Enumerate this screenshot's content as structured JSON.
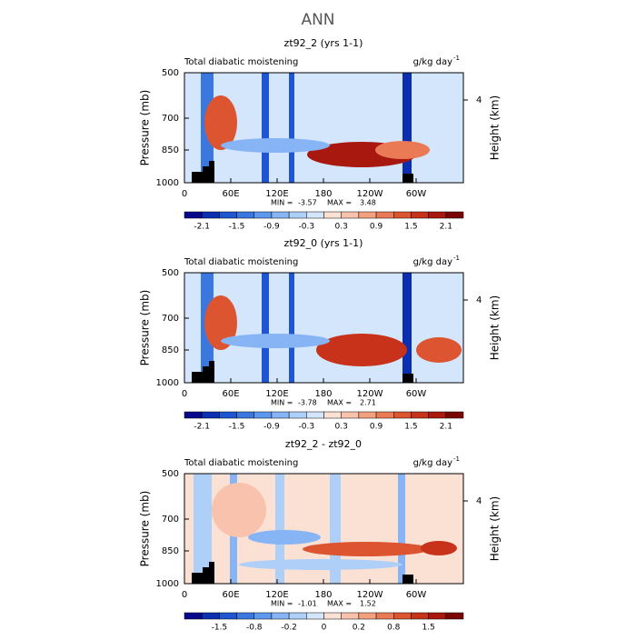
{
  "title": "ANN",
  "colorbar_colors": [
    "#08088a",
    "#0b2fb0",
    "#1f55d0",
    "#3a78e0",
    "#5d97ee",
    "#86b4f5",
    "#aecff8",
    "#d4e6fb",
    "#fbe0d4",
    "#f8c2ac",
    "#f3a07f",
    "#ea7a55",
    "#dc5430",
    "#c8321a",
    "#a8180f",
    "#7a0505"
  ],
  "panels": [
    {
      "title": "zt92_2 (yrs 1-1)",
      "left_label": "Total diabatic moistening",
      "units": "g/kg day",
      "units_exp": "-1",
      "y_label": "Pressure (mb)",
      "y2_label": "Height (km)",
      "yticks": [
        "500",
        "700",
        "850",
        "1000"
      ],
      "y2ticks": [
        "4"
      ],
      "xticks": [
        "0",
        "60E",
        "120E",
        "180",
        "120W",
        "60W"
      ],
      "min_label": "MIN =",
      "min": "-3.57",
      "max_label": "MAX =",
      "max": "3.48",
      "colorbar_labels": [
        "-2.1",
        "-1.5",
        "-0.9",
        "-0.3",
        "0.3",
        "0.9",
        "1.5",
        "2.1"
      ]
    },
    {
      "title": "zt92_0 (yrs 1-1)",
      "left_label": "Total diabatic moistening",
      "units": "g/kg day",
      "units_exp": "-1",
      "y_label": "Pressure (mb)",
      "y2_label": "Height (km)",
      "yticks": [
        "500",
        "700",
        "850",
        "1000"
      ],
      "y2ticks": [
        "4"
      ],
      "xticks": [
        "0",
        "60E",
        "120E",
        "180",
        "120W",
        "60W"
      ],
      "min_label": "MIN =",
      "min": "-3.78",
      "max_label": "MAX =",
      "max": "2.71",
      "colorbar_labels": [
        "-2.1",
        "-1.5",
        "-0.9",
        "-0.3",
        "0.3",
        "0.9",
        "1.5",
        "2.1"
      ]
    },
    {
      "title": "zt92_2 - zt92_0",
      "left_label": "Total diabatic moistening",
      "units": "g/kg day",
      "units_exp": "-1",
      "y_label": "Pressure (mb)",
      "y2_label": "Height (km)",
      "yticks": [
        "500",
        "700",
        "850",
        "1000"
      ],
      "y2ticks": [
        "4"
      ],
      "xticks": [
        "0",
        "60E",
        "120E",
        "180",
        "120W",
        "60W"
      ],
      "min_label": "MIN =",
      "min": "-1.01",
      "max_label": "MAX =",
      "max": "1.52",
      "colorbar_labels": [
        "-1.5",
        "-0.8",
        "-0.2",
        "0",
        "0.2",
        "0.8",
        "1.5"
      ]
    }
  ]
}
